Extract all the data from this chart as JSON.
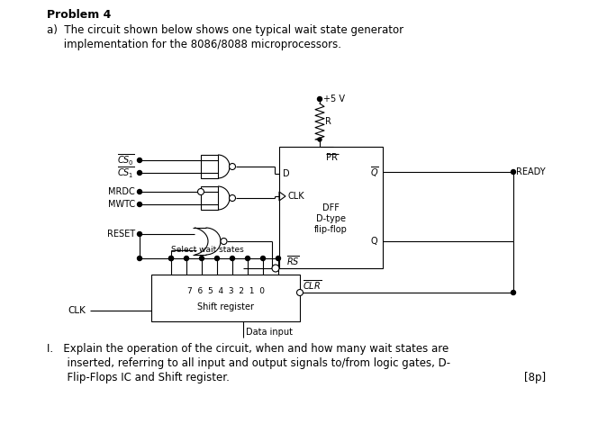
{
  "bg_color": "#ffffff",
  "title_bold": "Problem 4",
  "desc_line1": "a)  The circuit shown below shows one typical wait state generator",
  "desc_line2": "     implementation for the 8086/8088 microprocessors.",
  "bottom1": "I.   Explain the operation of the circuit, when and how many wait states are",
  "bottom2": "      inserted, referring to all input and output signals to/from logic gates, D-",
  "bottom3": "      Flip-Flops IC and Shift register.",
  "bottom4": "[8p]",
  "vcc_label": "+5 V",
  "r_label": "R",
  "ready_label": "READY",
  "dff_label1": "DFF",
  "dff_label2": "D-type",
  "dff_label3": "flip-flop",
  "clr_label": "CLR",
  "data_input_label": "Data input",
  "shift_reg_nums": "7  6  5  4  3  2  1  0",
  "shift_reg_label": "Shift register",
  "select_label": "Select wait states",
  "clk_label": "CLK",
  "reset_label": "RESET",
  "mrdc_label": "MRDC",
  "mwtc_label": "MWTC"
}
